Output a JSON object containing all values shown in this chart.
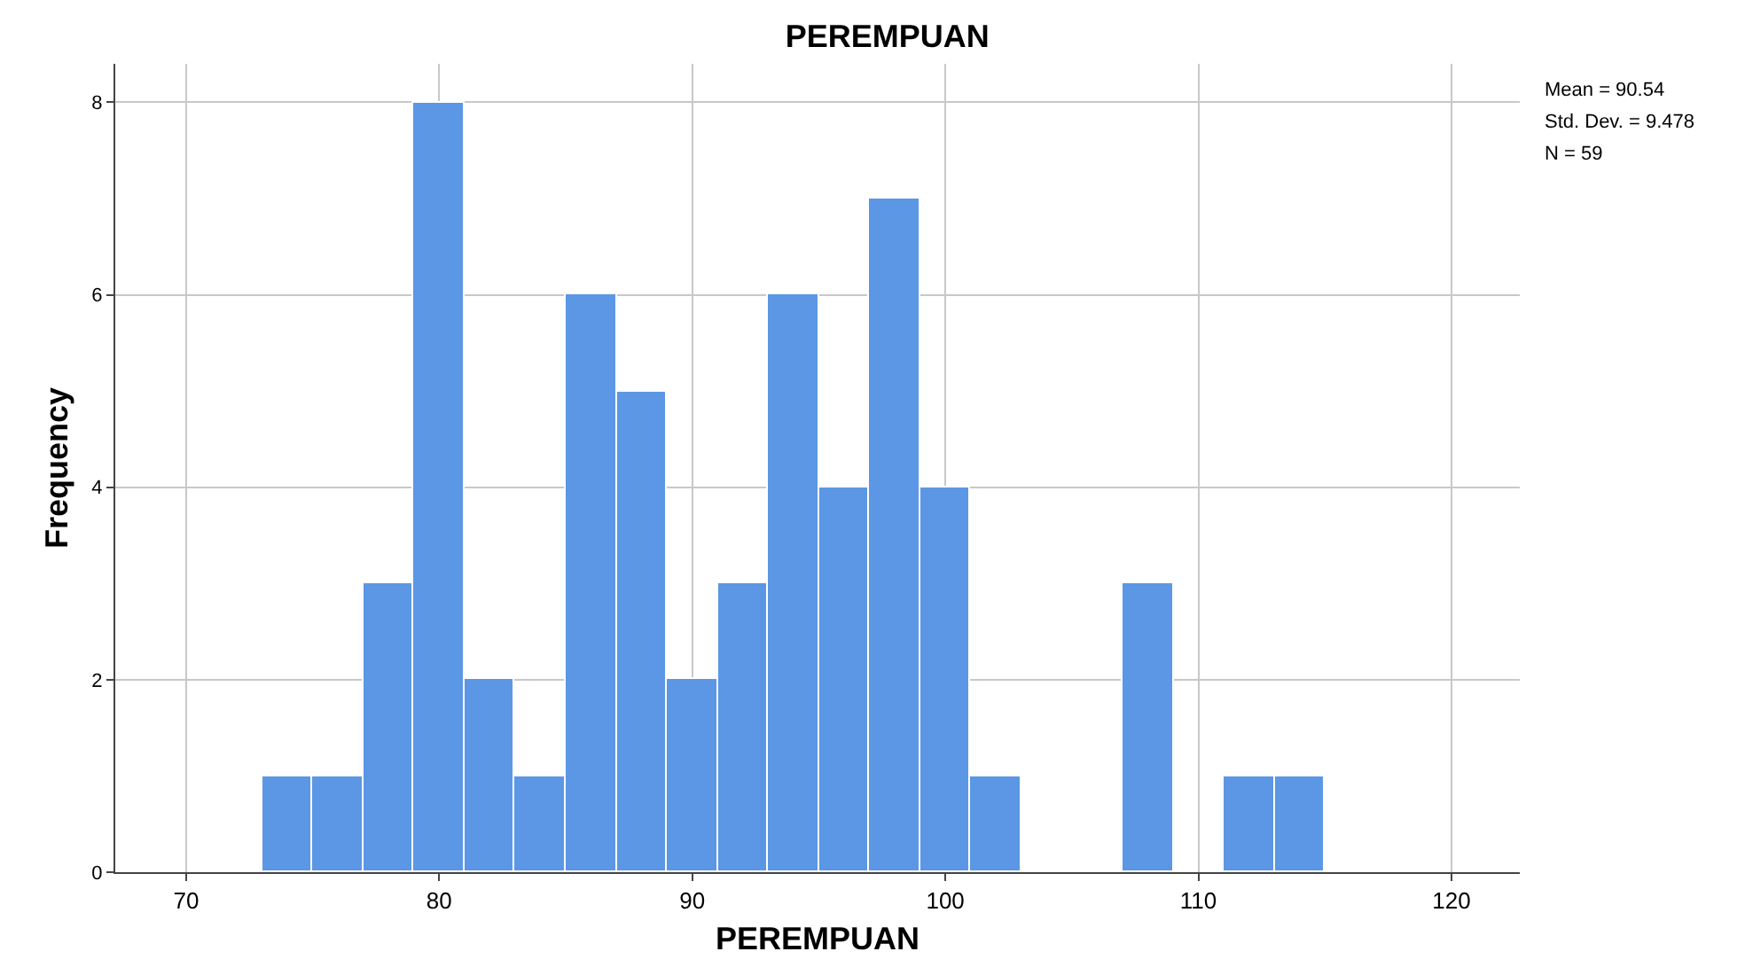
{
  "chart_data": {
    "type": "histogram",
    "title": "PEREMPUAN",
    "xlabel": "PEREMPUAN",
    "ylabel": "Frequency",
    "bins": [
      73,
      75,
      77,
      79,
      81,
      83,
      85,
      87,
      89,
      91,
      93,
      95,
      97,
      99,
      101,
      103,
      105,
      107,
      109,
      111,
      113,
      115
    ],
    "values": [
      1,
      1,
      3,
      8,
      2,
      1,
      6,
      5,
      2,
      3,
      6,
      4,
      7,
      4,
      1,
      0,
      0,
      3,
      0,
      1,
      1
    ],
    "color": "#5b97e5",
    "xlim": [
      67.2,
      122.7
    ],
    "xticks": [
      70,
      80,
      90,
      100,
      110,
      120
    ],
    "ylim": [
      0,
      8.4
    ],
    "yticks": [
      0,
      2,
      4,
      6,
      8
    ],
    "grid": true,
    "annotations": [
      "Mean = 90.54",
      "Std. Dev. = 9.478",
      "N = 59"
    ]
  }
}
